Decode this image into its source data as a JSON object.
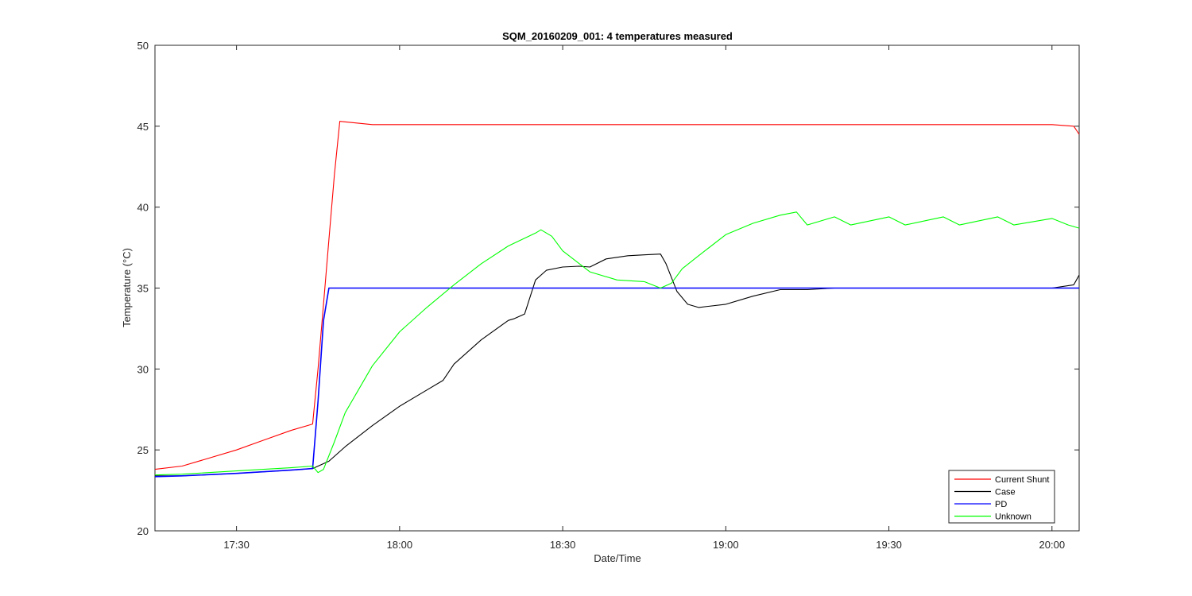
{
  "chart_data": {
    "type": "line",
    "title": "SQM_20160209_001: 4 temperatures measured",
    "xlabel": "Date/Time",
    "ylabel": "Temperature (°C)",
    "x_unit": "clock time (HH:MM)",
    "xlim": [
      "17:15",
      "20:05"
    ],
    "ylim": [
      20,
      50
    ],
    "x_ticks": [
      "17:30",
      "18:00",
      "18:30",
      "19:00",
      "19:30",
      "20:00"
    ],
    "y_ticks": [
      20,
      25,
      30,
      35,
      40,
      45,
      50
    ],
    "grid": false,
    "legend_position": "bottom-right",
    "series": [
      {
        "name": "Current Shunt",
        "color": "#ff0000",
        "x": [
          "17:15",
          "17:20",
          "17:25",
          "17:30",
          "17:35",
          "17:40",
          "17:44",
          "17:45",
          "17:46",
          "17:47",
          "17:48",
          "17:49",
          "17:55",
          "18:00",
          "18:30",
          "19:00",
          "19:30",
          "20:00",
          "20:04",
          "20:05"
        ],
        "y": [
          23.8,
          24.0,
          24.5,
          25.0,
          25.6,
          26.2,
          26.6,
          30.0,
          34.0,
          38.0,
          42.0,
          45.3,
          45.1,
          45.1,
          45.1,
          45.1,
          45.1,
          45.1,
          45.0,
          44.5
        ]
      },
      {
        "name": "Case",
        "color": "#000000",
        "x": [
          "17:15",
          "17:20",
          "17:30",
          "17:40",
          "17:44",
          "17:47",
          "17:50",
          "17:55",
          "18:00",
          "18:05",
          "18:08",
          "18:10",
          "18:15",
          "18:20",
          "18:21",
          "18:23",
          "18:25",
          "18:27",
          "18:30",
          "18:33",
          "18:35",
          "18:38",
          "18:42",
          "18:45",
          "18:48",
          "18:49",
          "18:51",
          "18:53",
          "18:55",
          "19:00",
          "19:05",
          "19:10",
          "19:15",
          "19:20",
          "19:30",
          "19:45",
          "20:00",
          "20:04",
          "20:05"
        ],
        "y": [
          23.4,
          23.4,
          23.55,
          23.75,
          23.85,
          24.3,
          25.2,
          26.5,
          27.7,
          28.7,
          29.3,
          30.3,
          31.8,
          33.0,
          33.1,
          33.4,
          35.5,
          36.1,
          36.3,
          36.35,
          36.3,
          36.8,
          37.0,
          37.05,
          37.1,
          36.5,
          34.8,
          34.0,
          33.8,
          34.0,
          34.5,
          34.9,
          34.9,
          35.0,
          35.0,
          35.0,
          35.0,
          35.2,
          35.8
        ]
      },
      {
        "name": "PD",
        "color": "#0000ff",
        "x": [
          "17:15",
          "17:20",
          "17:30",
          "17:40",
          "17:44",
          "17:45",
          "17:46",
          "17:47",
          "18:00",
          "18:30",
          "19:00",
          "19:30",
          "20:00",
          "20:05"
        ],
        "y": [
          23.35,
          23.4,
          23.55,
          23.75,
          23.85,
          28.0,
          33.0,
          35.0,
          35.0,
          35.0,
          35.0,
          35.0,
          35.0,
          35.0
        ]
      },
      {
        "name": "Unknown",
        "color": "#00ff00",
        "x": [
          "17:15",
          "17:20",
          "17:30",
          "17:40",
          "17:44",
          "17:45",
          "17:46",
          "17:48",
          "17:50",
          "17:55",
          "18:00",
          "18:05",
          "18:10",
          "18:15",
          "18:20",
          "18:25",
          "18:26",
          "18:28",
          "18:30",
          "18:35",
          "18:40",
          "18:45",
          "18:48",
          "18:50",
          "18:52",
          "18:55",
          "19:00",
          "19:05",
          "19:10",
          "19:13",
          "19:15",
          "19:20",
          "19:23",
          "19:30",
          "19:33",
          "19:40",
          "19:43",
          "19:50",
          "19:53",
          "20:00",
          "20:03",
          "20:05"
        ],
        "y": [
          23.45,
          23.5,
          23.7,
          23.9,
          24.0,
          23.6,
          23.8,
          25.5,
          27.3,
          30.2,
          32.3,
          33.8,
          35.2,
          36.5,
          37.6,
          38.4,
          38.6,
          38.2,
          37.3,
          36.0,
          35.5,
          35.4,
          35.0,
          35.3,
          36.2,
          37.0,
          38.3,
          39.0,
          39.5,
          39.7,
          38.9,
          39.4,
          38.9,
          39.4,
          38.9,
          39.4,
          38.9,
          39.4,
          38.9,
          39.3,
          38.9,
          38.7
        ]
      }
    ]
  }
}
